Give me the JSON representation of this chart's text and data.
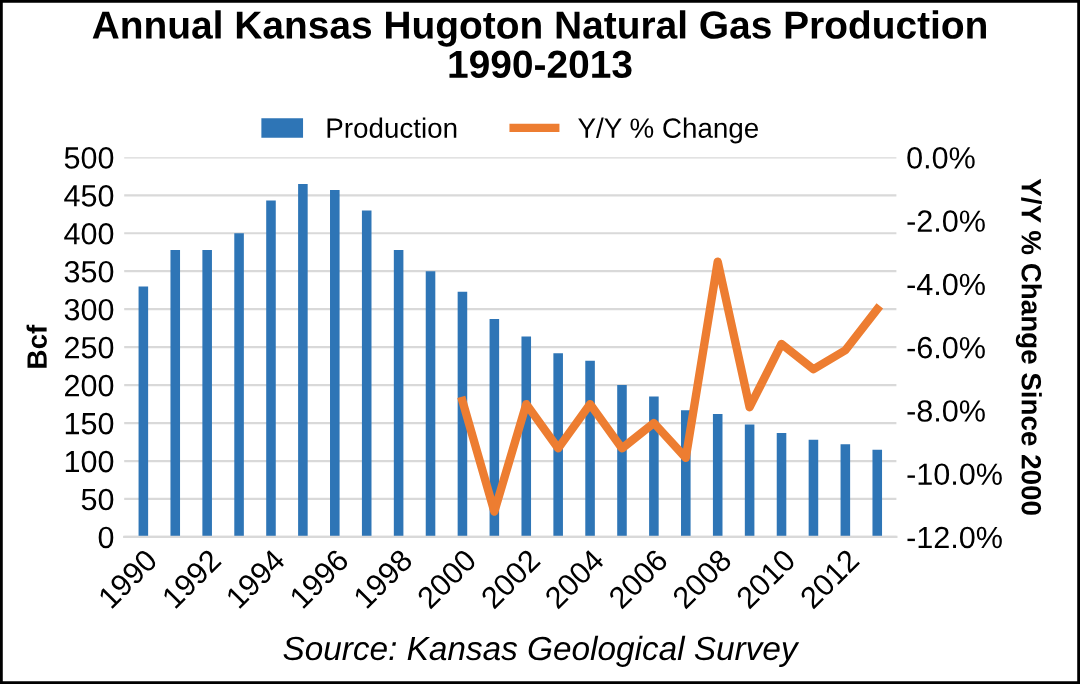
{
  "chart_data": {
    "type": "bar",
    "title": "Annual Kansas Hugoton Natural Gas Production\n1990-2013",
    "categories": [
      "1990",
      null,
      "1992",
      null,
      "1994",
      null,
      "1996",
      null,
      "1998",
      null,
      "2000",
      null,
      "2002",
      null,
      "2004",
      null,
      "2006",
      null,
      "2008",
      null,
      "2010",
      null,
      "2012",
      null
    ],
    "series": [
      {
        "name": "Production",
        "color": "#2e75b6",
        "values": [
          330,
          378,
          378,
          400,
          443,
          465,
          457,
          430,
          378,
          350,
          323,
          287,
          264,
          242,
          232,
          200,
          185,
          167,
          162,
          148,
          137,
          128,
          122,
          115
        ]
      },
      {
        "name": "Y/Y % Change",
        "type": "line",
        "axis": "y2",
        "color": "#ed7d31",
        "values": [
          null,
          null,
          null,
          null,
          null,
          null,
          null,
          null,
          null,
          null,
          -7.7,
          -11.2,
          -7.8,
          -9.2,
          -7.8,
          -9.2,
          -8.4,
          -9.5,
          -3.3,
          -7.9,
          -5.9,
          -6.7,
          -6.1,
          -4.8
        ]
      }
    ],
    "ylabel": "Bcf",
    "y2label": "Y/Y % Change Since 2000",
    "ylim": [
      0,
      500
    ],
    "yticks": [
      0,
      50,
      100,
      150,
      200,
      250,
      300,
      350,
      400,
      450,
      500
    ],
    "y2lim": [
      -12,
      0
    ],
    "y2ticks": [
      {
        "value": -12,
        "label": "-12.0%"
      },
      {
        "value": -10,
        "label": "-10.0%"
      },
      {
        "value": -8,
        "label": "-8.0%"
      },
      {
        "value": -6,
        "label": "-6.0%"
      },
      {
        "value": -4,
        "label": "-4.0%"
      },
      {
        "value": -2,
        "label": "-2.0%"
      },
      {
        "value": 0,
        "label": "0.0%"
      }
    ],
    "grid": "y",
    "legend": "top",
    "marker": "none",
    "annotations": [
      "Source: Kansas Geological Survey"
    ]
  }
}
